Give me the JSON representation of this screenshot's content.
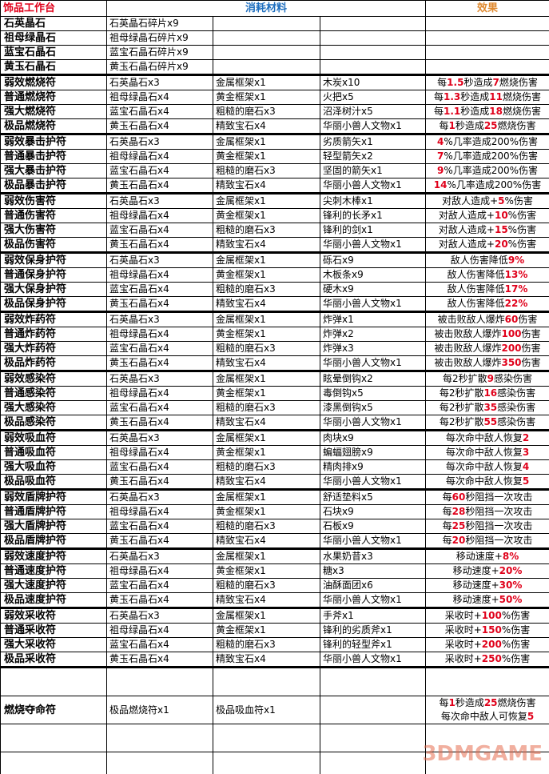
{
  "header": {
    "col_name": "饰品工作台",
    "col_materials": "消耗材料",
    "col_effect": "效果",
    "name_color": "#e0001a",
    "materials_color": "#1f6fbf",
    "effect_color": "#e08a30"
  },
  "highlight_color": "#e0001a",
  "rows": [
    {
      "name": "石英晶石",
      "m1": "石英晶石碎片x9",
      "m2": "",
      "m3": "",
      "effect": [
        ""
      ]
    },
    {
      "name": "祖母绿晶石",
      "m1": "祖母绿晶石碎片x9",
      "m2": "",
      "m3": "",
      "effect": [
        ""
      ]
    },
    {
      "name": "蓝宝石晶石",
      "m1": "蓝宝石晶石碎片x9",
      "m2": "",
      "m3": "",
      "effect": [
        ""
      ]
    },
    {
      "name": "黄玉石晶石",
      "m1": "黄玉石晶石碎片x9",
      "m2": "",
      "m3": "",
      "effect": [
        ""
      ]
    },
    {
      "name": "弱效燃烧符",
      "m1": "石英晶石x3",
      "m2": "金属框架x1",
      "m3": "木炭x10",
      "effect": [
        "每",
        "1.5",
        "秒造成",
        "7",
        "燃烧伤害"
      ]
    },
    {
      "name": "普通燃烧符",
      "m1": "祖母绿晶石x4",
      "m2": "黄金框架x1",
      "m3": "火把x5",
      "effect": [
        "每",
        "1.3",
        "秒造成",
        "11",
        "燃烧伤害"
      ]
    },
    {
      "name": "强大燃烧符",
      "m1": "蓝宝石晶石x4",
      "m2": "粗糙的磨石x3",
      "m3": "沼泽树汁x5",
      "effect": [
        "每",
        "1.1",
        "秒造成",
        "18",
        "燃烧伤害"
      ]
    },
    {
      "name": "极品燃烧符",
      "m1": "黄玉石晶石x4",
      "m2": "精致宝石x4",
      "m3": "华丽小兽人文物x1",
      "effect": [
        "每",
        "1",
        "秒造成",
        "25",
        "燃烧伤害"
      ]
    },
    {
      "name": "弱效暴击护符",
      "m1": "石英晶石x3",
      "m2": "金属框架x1",
      "m3": "劣质箭矢x1",
      "effect": [
        "",
        "4",
        "%几率造成200%伤害"
      ]
    },
    {
      "name": "普通暴击护符",
      "m1": "祖母绿晶石x4",
      "m2": "黄金框架x1",
      "m3": "轻型箭矢x2",
      "effect": [
        "",
        "7",
        "%几率造成200%伤害"
      ]
    },
    {
      "name": "强大暴击护符",
      "m1": "蓝宝石晶石x4",
      "m2": "粗糙的磨石x3",
      "m3": "坚固的箭矢x1",
      "effect": [
        "",
        "9",
        "%几率造成200%伤害"
      ]
    },
    {
      "name": "极品暴击护符",
      "m1": "黄玉石晶石x4",
      "m2": "精致宝石x4",
      "m3": "华丽小兽人文物x1",
      "effect": [
        "",
        "14",
        "%几率造成200%伤害"
      ]
    },
    {
      "name": "弱效伤害符",
      "m1": "石英晶石x3",
      "m2": "金属框架x1",
      "m3": "尖刺木棒x1",
      "effect": [
        "对敌人造成+",
        "5",
        "%伤害"
      ]
    },
    {
      "name": "普通伤害符",
      "m1": "祖母绿晶石x4",
      "m2": "黄金框架x1",
      "m3": "锋利的长矛x1",
      "effect": [
        "对敌人造成+",
        "10",
        "%伤害"
      ]
    },
    {
      "name": "强大伤害符",
      "m1": "蓝宝石晶石x4",
      "m2": "粗糙的磨石x3",
      "m3": "锋利的剑x1",
      "effect": [
        "对敌人造成+",
        "15",
        "%伤害"
      ]
    },
    {
      "name": "极品伤害符",
      "m1": "黄玉石晶石x4",
      "m2": "精致宝石x4",
      "m3": "华丽小兽人文物x1",
      "effect": [
        "对敌人造成+",
        "20",
        "%伤害"
      ]
    },
    {
      "name": "弱效保身护符",
      "m1": "石英晶石x3",
      "m2": "金属框架x1",
      "m3": "砾石x9",
      "effect": [
        "敌人伤害降低",
        "9%"
      ]
    },
    {
      "name": "普通保身护符",
      "m1": "祖母绿晶石x4",
      "m2": "黄金框架x1",
      "m3": "木板条x9",
      "effect": [
        "敌人伤害降低",
        "13%"
      ]
    },
    {
      "name": "强大保身护符",
      "m1": "蓝宝石晶石x4",
      "m2": "粗糙的磨石x3",
      "m3": "硬木x9",
      "effect": [
        "敌人伤害降低",
        "17%"
      ]
    },
    {
      "name": "极品保身护符",
      "m1": "黄玉石晶石x4",
      "m2": "精致宝石x4",
      "m3": "华丽小兽人文物x1",
      "effect": [
        "敌人伤害降低",
        "22%"
      ]
    },
    {
      "name": "弱效炸药符",
      "m1": "石英晶石x3",
      "m2": "金属框架x1",
      "m3": "炸弹x1",
      "effect": [
        "被击败敌人爆炸",
        "60",
        "伤害"
      ]
    },
    {
      "name": "普通炸药符",
      "m1": "祖母绿晶石x4",
      "m2": "黄金框架x1",
      "m3": "炸弹x2",
      "effect": [
        "被击败敌人爆炸",
        "100",
        "伤害"
      ]
    },
    {
      "name": "强大炸药符",
      "m1": "蓝宝石晶石x4",
      "m2": "粗糙的磨石x3",
      "m3": "炸弹x3",
      "effect": [
        "被击败敌人爆炸",
        "200",
        "伤害"
      ]
    },
    {
      "name": "极品炸药符",
      "m1": "黄玉石晶石x4",
      "m2": "精致宝石x4",
      "m3": "华丽小兽人文物x1",
      "effect": [
        "被击败敌人爆炸",
        "350",
        "伤害"
      ]
    },
    {
      "name": "弱效感染符",
      "m1": "石英晶石x3",
      "m2": "金属框架x1",
      "m3": "眩晕倒钩x2",
      "effect": [
        "每2秒扩散",
        "9",
        "感染伤害"
      ]
    },
    {
      "name": "普通感染符",
      "m1": "祖母绿晶石x4",
      "m2": "黄金框架x1",
      "m3": "毒倒钩x5",
      "effect": [
        "每2秒扩散",
        "16",
        "感染伤害"
      ]
    },
    {
      "name": "强大感染符",
      "m1": "蓝宝石晶石x4",
      "m2": "粗糙的磨石x3",
      "m3": "漆黑倒钩x5",
      "effect": [
        "每2秒扩散",
        "35",
        "感染伤害"
      ]
    },
    {
      "name": "极品感染符",
      "m1": "黄玉石晶石x4",
      "m2": "精致宝石x4",
      "m3": "华丽小兽人文物x1",
      "effect": [
        "每2秒扩散",
        "55",
        "感染伤害"
      ]
    },
    {
      "name": "弱效吸血符",
      "m1": "石英晶石x3",
      "m2": "金属框架x1",
      "m3": "肉块x9",
      "effect": [
        "每次命中敌人恢复",
        "2"
      ]
    },
    {
      "name": "普通吸血符",
      "m1": "祖母绿晶石x4",
      "m2": "黄金框架x1",
      "m3": "蝙蝠翅膀x9",
      "effect": [
        "每次命中敌人恢复",
        "3"
      ]
    },
    {
      "name": "强大吸血符",
      "m1": "蓝宝石晶石x4",
      "m2": "粗糙的磨石x3",
      "m3": "精肉排x9",
      "effect": [
        "每次命中敌人恢复",
        "4"
      ]
    },
    {
      "name": "极品吸血符",
      "m1": "黄玉石晶石x4",
      "m2": "精致宝石x4",
      "m3": "华丽小兽人文物x1",
      "effect": [
        "每次命中敌人恢复",
        "5"
      ]
    },
    {
      "name": "弱效盾牌护符",
      "m1": "石英晶石x3",
      "m2": "金属框架x1",
      "m3": "舒适垫料x5",
      "effect": [
        "每",
        "60",
        "秒阻挡一次攻击"
      ]
    },
    {
      "name": "普通盾牌护符",
      "m1": "祖母绿晶石x4",
      "m2": "黄金框架x1",
      "m3": "石块x9",
      "effect": [
        "每",
        "28",
        "秒阻挡一次攻击"
      ]
    },
    {
      "name": "强大盾牌护符",
      "m1": "蓝宝石晶石x4",
      "m2": "粗糙的磨石x3",
      "m3": "石板x9",
      "effect": [
        "每",
        "25",
        "秒阻挡一次攻击"
      ]
    },
    {
      "name": "极品盾牌护符",
      "m1": "黄玉石晶石x4",
      "m2": "精致宝石x4",
      "m3": "华丽小兽人文物x1",
      "effect": [
        "每",
        "20",
        "秒阻挡一次攻击"
      ]
    },
    {
      "name": "弱效速度护符",
      "m1": "石英晶石x3",
      "m2": "金属框架x1",
      "m3": "水果奶昔x3",
      "effect": [
        "移动速度+",
        "8%"
      ]
    },
    {
      "name": "普通速度护符",
      "m1": "祖母绿晶石x4",
      "m2": "黄金框架x1",
      "m3": "糖x3",
      "effect": [
        "移动速度+",
        "20%"
      ]
    },
    {
      "name": "强大速度护符",
      "m1": "蓝宝石晶石x4",
      "m2": "粗糙的磨石x3",
      "m3": "油酥面团x6",
      "effect": [
        "移动速度+",
        "30%"
      ]
    },
    {
      "name": "极品速度护符",
      "m1": "黄玉石晶石x4",
      "m2": "精致宝石x4",
      "m3": "华丽小兽人文物x1",
      "effect": [
        "移动速度+",
        "50%"
      ]
    },
    {
      "name": "弱效采收符",
      "m1": "石英晶石x3",
      "m2": "金属框架x1",
      "m3": "手斧x1",
      "effect": [
        "采收时+",
        "100",
        "%伤害"
      ]
    },
    {
      "name": "普通采收符",
      "m1": "祖母绿晶石x4",
      "m2": "黄金框架x1",
      "m3": "锋利的劣质斧x1",
      "effect": [
        "采收时+",
        "150",
        "%伤害"
      ]
    },
    {
      "name": "强大采收符",
      "m1": "蓝宝石晶石x4",
      "m2": "粗糙的磨石x3",
      "m3": "锋利的轻型斧x1",
      "effect": [
        "采收时+",
        "200",
        "%伤害"
      ]
    },
    {
      "name": "极品采收符",
      "m1": "黄玉石晶石x4",
      "m2": "精致宝石x4",
      "m3": "华丽小兽人文物x1",
      "effect": [
        "采收时+",
        "250",
        "%伤害"
      ]
    }
  ],
  "special": {
    "name": "燃烧夺命符",
    "m1": "极品燃烧符x1",
    "m2": "极品吸血符x1",
    "m3": "",
    "effect_line1": [
      "每",
      "1",
      "秒造成",
      "25",
      "燃烧伤害"
    ],
    "effect_line2": [
      "每次命中敌人可恢复",
      "5"
    ]
  },
  "watermark": "3DMGAME"
}
